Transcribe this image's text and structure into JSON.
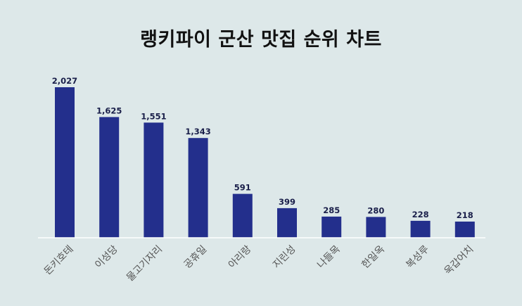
{
  "chart_data": {
    "type": "bar",
    "title": "랭키파이 군산 맛집 순위 차트",
    "categories": [
      "돈키호테",
      "이성당",
      "물고기자리",
      "공휴일",
      "아리랑",
      "지린성",
      "나들목",
      "한일옥",
      "복성루",
      "욱갑어치"
    ],
    "values": [
      2027,
      1625,
      1551,
      1343,
      591,
      399,
      285,
      280,
      228,
      218
    ],
    "value_labels": [
      "2,027",
      "1,625",
      "1,551",
      "1,343",
      "591",
      "399",
      "285",
      "280",
      "228",
      "218"
    ],
    "xlabel": "",
    "ylabel": "",
    "ylim": [
      0,
      2027
    ],
    "grid": false,
    "legend": "none",
    "colors": {
      "bar": "#232f8c",
      "background": "#dde8e9",
      "axis": "#ffffff",
      "value_label": "#1a1f4a",
      "category_label": "#555555"
    }
  }
}
